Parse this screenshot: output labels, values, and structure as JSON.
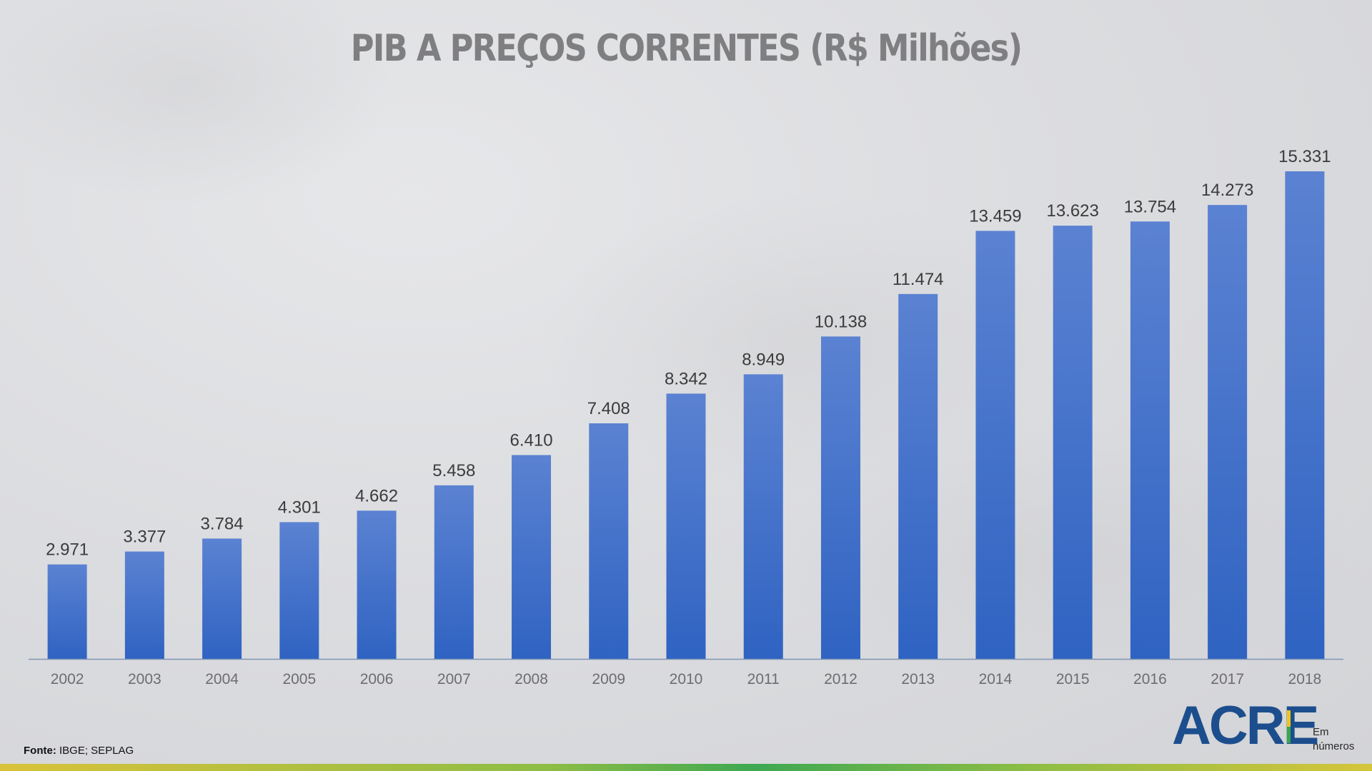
{
  "title": "PIB A PREÇOS CORRENTES (R$ Milhões)",
  "source": {
    "label": "Fonte:",
    "text": "IBGE; SEPLAG"
  },
  "logo": {
    "word": "ACRE",
    "sub_line1": "Em",
    "sub_line2": "números"
  },
  "colors": {
    "bar_top": "#5b82d2",
    "bar_bottom": "#2f63c2",
    "axis": "#7f95b5"
  },
  "chart_data": {
    "type": "bar",
    "title": "PIB A PREÇOS CORRENTES (R$ Milhões)",
    "xlabel": "",
    "ylabel": "",
    "categories": [
      "2002",
      "2003",
      "2004",
      "2005",
      "2006",
      "2007",
      "2008",
      "2009",
      "2010",
      "2011",
      "2012",
      "2013",
      "2014",
      "2015",
      "2016",
      "2017",
      "2018"
    ],
    "values": [
      2971,
      3377,
      3784,
      4301,
      4662,
      5458,
      6410,
      7408,
      8342,
      8949,
      10138,
      11474,
      13459,
      13623,
      13754,
      14273,
      15331
    ],
    "labels": [
      "2.971",
      "3.377",
      "3.784",
      "4.301",
      "4.662",
      "5.458",
      "6.410",
      "7.408",
      "8.342",
      "8.949",
      "10.138",
      "11.474",
      "13.459",
      "13.623",
      "13.754",
      "14.273",
      "15.331"
    ],
    "ylim": [
      0,
      16000
    ],
    "grid": false,
    "legend": "none"
  }
}
